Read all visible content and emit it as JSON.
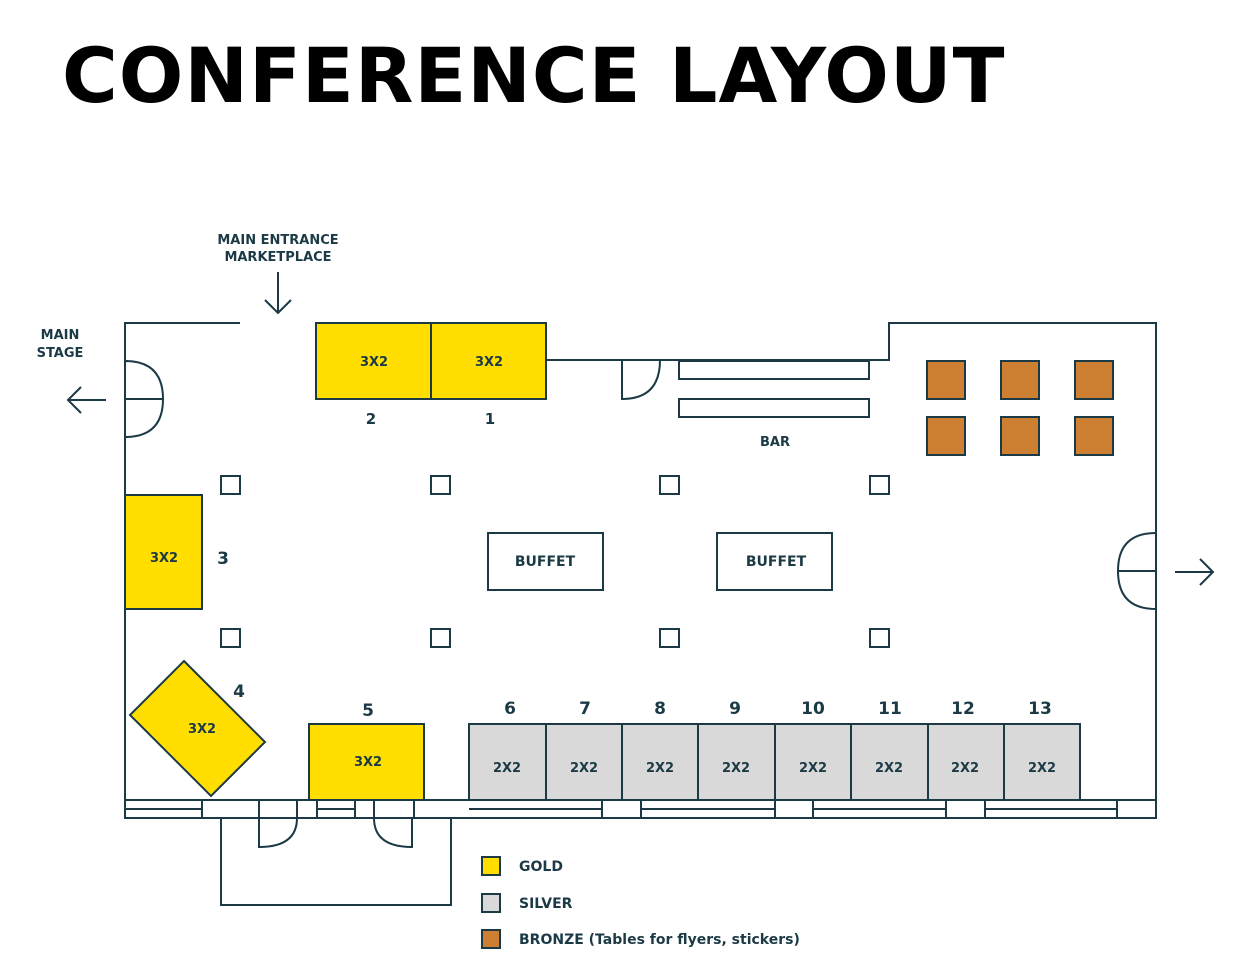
{
  "title": "CONFERENCE LAYOUT",
  "colors": {
    "gold": "#ffde00",
    "silver": "#d9d9d9",
    "bronze": "#cd7f32",
    "line": "#1b3a45"
  },
  "labels": {
    "main_entrance": "MAIN ENTRANCE",
    "marketplace": "MARKETPLACE",
    "main": "MAIN",
    "stage": "STAGE",
    "bar": "BAR",
    "buffet": "BUFFET"
  },
  "booths": [
    {
      "number": "1",
      "size": "3X2",
      "tier": "gold"
    },
    {
      "number": "2",
      "size": "3X2",
      "tier": "gold"
    },
    {
      "number": "3",
      "size": "3X2",
      "tier": "gold"
    },
    {
      "number": "4",
      "size": "3X2",
      "tier": "gold"
    },
    {
      "number": "5",
      "size": "3X2",
      "tier": "gold"
    },
    {
      "number": "6",
      "size": "2X2",
      "tier": "silver"
    },
    {
      "number": "7",
      "size": "2X2",
      "tier": "silver"
    },
    {
      "number": "8",
      "size": "2X2",
      "tier": "silver"
    },
    {
      "number": "9",
      "size": "2X2",
      "tier": "silver"
    },
    {
      "number": "10",
      "size": "2X2",
      "tier": "silver"
    },
    {
      "number": "11",
      "size": "2X2",
      "tier": "silver"
    },
    {
      "number": "12",
      "size": "2X2",
      "tier": "silver"
    },
    {
      "number": "13",
      "size": "2X2",
      "tier": "silver"
    }
  ],
  "legend": [
    {
      "tier": "gold",
      "label": "GOLD"
    },
    {
      "tier": "silver",
      "label": "SILVER"
    },
    {
      "tier": "bronze",
      "label": "BRONZE (Tables for flyers, stickers)"
    }
  ]
}
